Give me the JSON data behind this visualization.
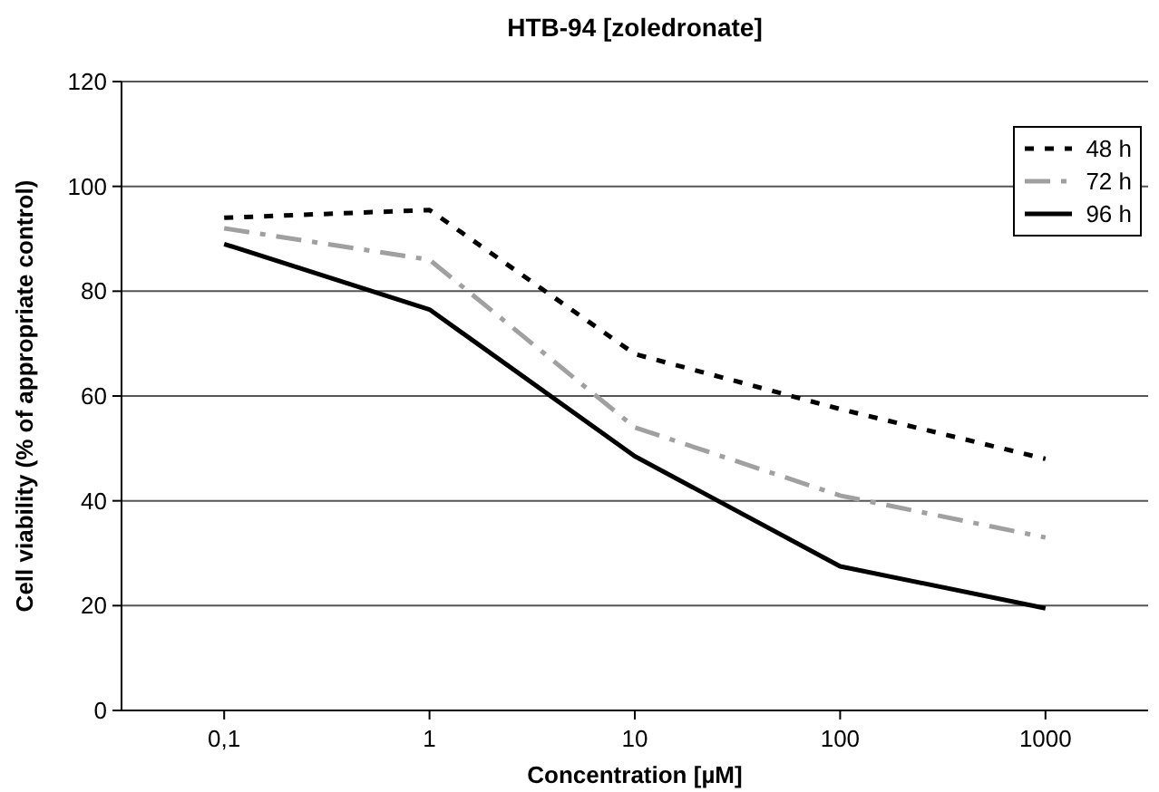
{
  "chart_data": {
    "type": "line",
    "title": "HTB-94 [zoledronate]",
    "xlabel": "Concentration [µM]",
    "ylabel": "Cell viability (% of appropriate control)",
    "categories": [
      "0,1",
      "1",
      "10",
      "100",
      "1000"
    ],
    "series": [
      {
        "name": "48 h",
        "color": "#000000",
        "line_style": "dotted",
        "values": [
          94,
          95.5,
          68,
          57.5,
          48
        ]
      },
      {
        "name": "72 h",
        "color": "#a0a0a0",
        "line_style": "dashed",
        "values": [
          92,
          86,
          54,
          41,
          33
        ]
      },
      {
        "name": "96 h",
        "color": "#000000",
        "line_style": "solid",
        "values": [
          89,
          76.5,
          48.5,
          27.5,
          19.5
        ]
      }
    ],
    "ylim": [
      0,
      120
    ],
    "yticks": [
      0,
      20,
      40,
      60,
      80,
      100,
      120
    ],
    "grid": "y",
    "legend": "top right",
    "marker": "none"
  }
}
